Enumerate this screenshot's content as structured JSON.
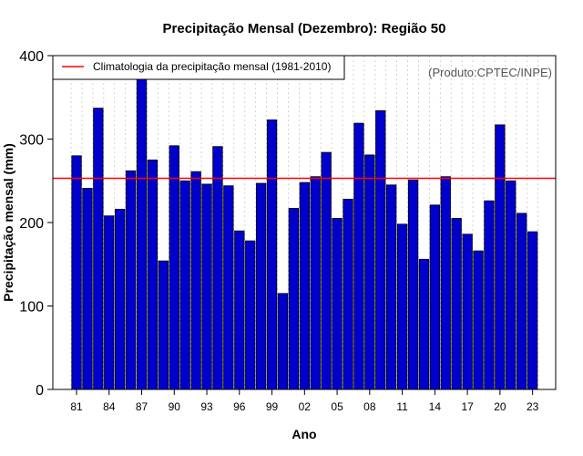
{
  "chart_data": {
    "type": "bar",
    "title": "Precipitação Mensal (Dezembro): Região 50",
    "xlabel": "Ano",
    "ylabel": "Precipitação mensal (mm)",
    "ylim": [
      0,
      400
    ],
    "yticks": [
      0,
      100,
      200,
      300,
      400
    ],
    "xtick_labels": [
      "81",
      "84",
      "87",
      "90",
      "93",
      "96",
      "99",
      "02",
      "05",
      "08",
      "11",
      "14",
      "17",
      "20",
      "23"
    ],
    "xtick_years": [
      1981,
      1984,
      1987,
      1990,
      1993,
      1996,
      1999,
      2002,
      2005,
      2008,
      2011,
      2014,
      2017,
      2020,
      2023
    ],
    "years": [
      1981,
      1982,
      1983,
      1984,
      1985,
      1986,
      1987,
      1988,
      1989,
      1990,
      1991,
      1992,
      1993,
      1994,
      1995,
      1996,
      1997,
      1998,
      1999,
      2000,
      2001,
      2002,
      2003,
      2004,
      2005,
      2006,
      2007,
      2008,
      2009,
      2010,
      2011,
      2012,
      2013,
      2014,
      2015,
      2016,
      2017,
      2018,
      2019,
      2020,
      2021,
      2022,
      2023
    ],
    "values": [
      280,
      241,
      337,
      208,
      216,
      262,
      373,
      275,
      154,
      292,
      250,
      261,
      246,
      291,
      244,
      190,
      178,
      247,
      323,
      115,
      217,
      248,
      255,
      284,
      205,
      228,
      319,
      281,
      334,
      245,
      198,
      251,
      156,
      221,
      255,
      205,
      186,
      166,
      226,
      317,
      250,
      211,
      189
    ],
    "bar_color": "#0000cc",
    "climatology": {
      "value": 253,
      "color": "#ff0000",
      "label": "Climatologia da precipitação mensal (1981-2010)"
    },
    "legend_position": "top-left",
    "grid": "vertical-dotted"
  },
  "credit": "(Produto:CPTEC/INPE)"
}
